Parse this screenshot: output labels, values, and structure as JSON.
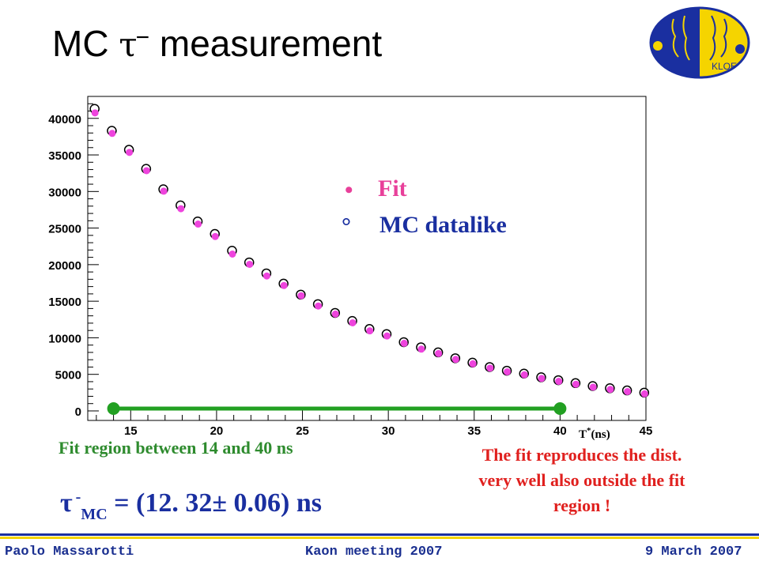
{
  "slide": {
    "title_prefix": "MC",
    "title_tau": "τ",
    "title_sup": "−",
    "title_suffix": "measurement",
    "fit_region_note": "Fit region between 14  and 40 ns",
    "result_tau": "τ",
    "result_sup": "-",
    "result_sub": "MC",
    "result_value": "= (12. 32± 0.06) ns",
    "comment_lines": [
      "The fit reproduces the dist.",
      "very well also outside the fit",
      "region !"
    ],
    "footer_left": "Paolo Massarotti",
    "footer_center": "Kaon  meeting 2007",
    "footer_right": "9 March 2007"
  },
  "logo": {
    "text": "KLOE"
  },
  "colors": {
    "fit": "#ee44dd",
    "data": "#000000",
    "fit_label": "#e8409a",
    "data_label": "#1a2fa0",
    "range_line": "#22a022",
    "footer_bars": [
      "#1a2fa0",
      "#f5d400"
    ]
  },
  "chart_data": {
    "type": "scatter",
    "xlabel": "T*(ns)",
    "xlim": [
      12.5,
      45
    ],
    "ylim": [
      -1300,
      43000
    ],
    "xticks": [
      15,
      20,
      25,
      30,
      35,
      40,
      45
    ],
    "yticks": [
      0,
      5000,
      10000,
      15000,
      20000,
      25000,
      30000,
      35000,
      40000
    ],
    "legend": {
      "position": "upper-right",
      "fit_marker": "•",
      "fit_label": "Fit",
      "data_marker": "°",
      "data_label": "MC datalike"
    },
    "fit_range": [
      14,
      40
    ],
    "series": [
      {
        "name": "Fit",
        "style": "filled",
        "x": [
          12.9,
          13.9,
          14.9,
          15.9,
          16.9,
          17.9,
          18.9,
          19.9,
          20.9,
          21.9,
          22.9,
          23.9,
          24.9,
          25.9,
          26.9,
          27.9,
          28.9,
          29.9,
          30.9,
          31.9,
          32.9,
          33.9,
          34.9,
          35.9,
          36.9,
          37.9,
          38.9,
          39.9,
          40.9,
          41.9,
          42.9,
          43.9,
          44.9
        ],
        "y": [
          40800,
          38000,
          35400,
          32900,
          30100,
          27700,
          25600,
          23900,
          21500,
          20100,
          18500,
          17200,
          15800,
          14400,
          13300,
          12100,
          11000,
          10300,
          9300,
          8500,
          7900,
          7100,
          6500,
          5900,
          5400,
          5000,
          4500,
          4100,
          3700,
          3300,
          3000,
          2700,
          2400
        ]
      },
      {
        "name": "MC datalike",
        "style": "open",
        "x": [
          12.9,
          13.9,
          14.9,
          15.9,
          16.9,
          17.9,
          18.9,
          19.9,
          20.9,
          21.9,
          22.9,
          23.9,
          24.9,
          25.9,
          26.9,
          27.9,
          28.9,
          29.9,
          30.9,
          31.9,
          32.9,
          33.9,
          34.9,
          35.9,
          36.9,
          37.9,
          38.9,
          39.9,
          40.9,
          41.9,
          42.9,
          43.9,
          44.9
        ],
        "y": [
          41300,
          38300,
          35700,
          33100,
          30300,
          28100,
          25900,
          24200,
          21900,
          20300,
          18800,
          17400,
          15900,
          14600,
          13400,
          12300,
          11200,
          10500,
          9400,
          8700,
          8000,
          7200,
          6600,
          6000,
          5500,
          5100,
          4600,
          4200,
          3800,
          3400,
          3100,
          2800,
          2500
        ]
      }
    ]
  }
}
